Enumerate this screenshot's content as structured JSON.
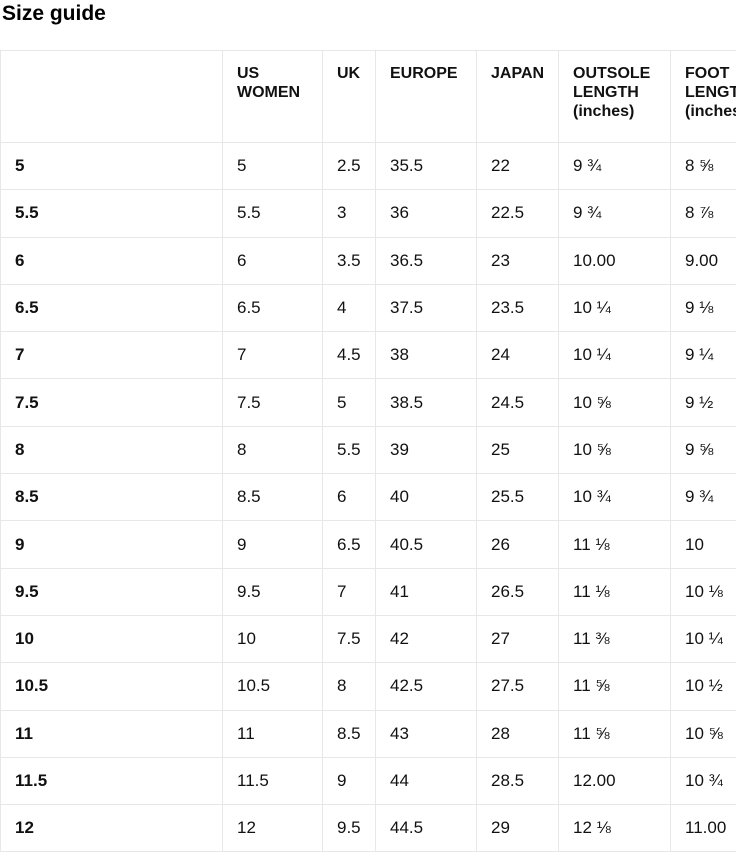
{
  "page": {
    "title": "Size guide"
  },
  "size_table": {
    "columns": [
      "",
      "US WOMEN",
      "UK",
      "EUROPE",
      "JAPAN",
      "OUTSOLE LENGTH (inches)",
      "FOOT LENGTH (inches)"
    ],
    "rows": [
      [
        "5",
        "5",
        "2.5",
        "35.5",
        "22",
        "9 ¾",
        "8 ⅝"
      ],
      [
        "5.5",
        "5.5",
        "3",
        "36",
        "22.5",
        "9 ¾",
        "8 ⅞"
      ],
      [
        "6",
        "6",
        "3.5",
        "36.5",
        "23",
        "10.00",
        "9.00"
      ],
      [
        "6.5",
        "6.5",
        "4",
        "37.5",
        "23.5",
        "10 ¼",
        "9 ⅛"
      ],
      [
        "7",
        "7",
        "4.5",
        "38",
        "24",
        "10 ¼",
        "9 ¼"
      ],
      [
        "7.5",
        "7.5",
        "5",
        "38.5",
        "24.5",
        "10 ⅝",
        "9 ½"
      ],
      [
        "8",
        "8",
        "5.5",
        "39",
        "25",
        "10 ⅝",
        "9 ⅝"
      ],
      [
        "8.5",
        "8.5",
        "6",
        "40",
        "25.5",
        "10 ¾",
        "9 ¾"
      ],
      [
        "9",
        "9",
        "6.5",
        "40.5",
        "26",
        "11 ⅛",
        "10"
      ],
      [
        "9.5",
        "9.5",
        "7",
        "41",
        "26.5",
        "11 ⅛",
        "10 ⅛"
      ],
      [
        "10",
        "10",
        "7.5",
        "42",
        "27",
        "11 ⅜",
        "10 ¼"
      ],
      [
        "10.5",
        "10.5",
        "8",
        "42.5",
        "27.5",
        "11 ⅝",
        "10 ½"
      ],
      [
        "11",
        "11",
        "8.5",
        "43",
        "28",
        "11 ⅝",
        "10 ⅝"
      ],
      [
        "11.5",
        "11.5",
        "9",
        "44",
        "28.5",
        "12.00",
        "10 ¾"
      ],
      [
        "12",
        "12",
        "9.5",
        "44.5",
        "29",
        "12 ⅛",
        "11.00"
      ]
    ]
  },
  "colors": {
    "border": "#e7e7e7",
    "text": "#111111",
    "background": "#ffffff"
  }
}
